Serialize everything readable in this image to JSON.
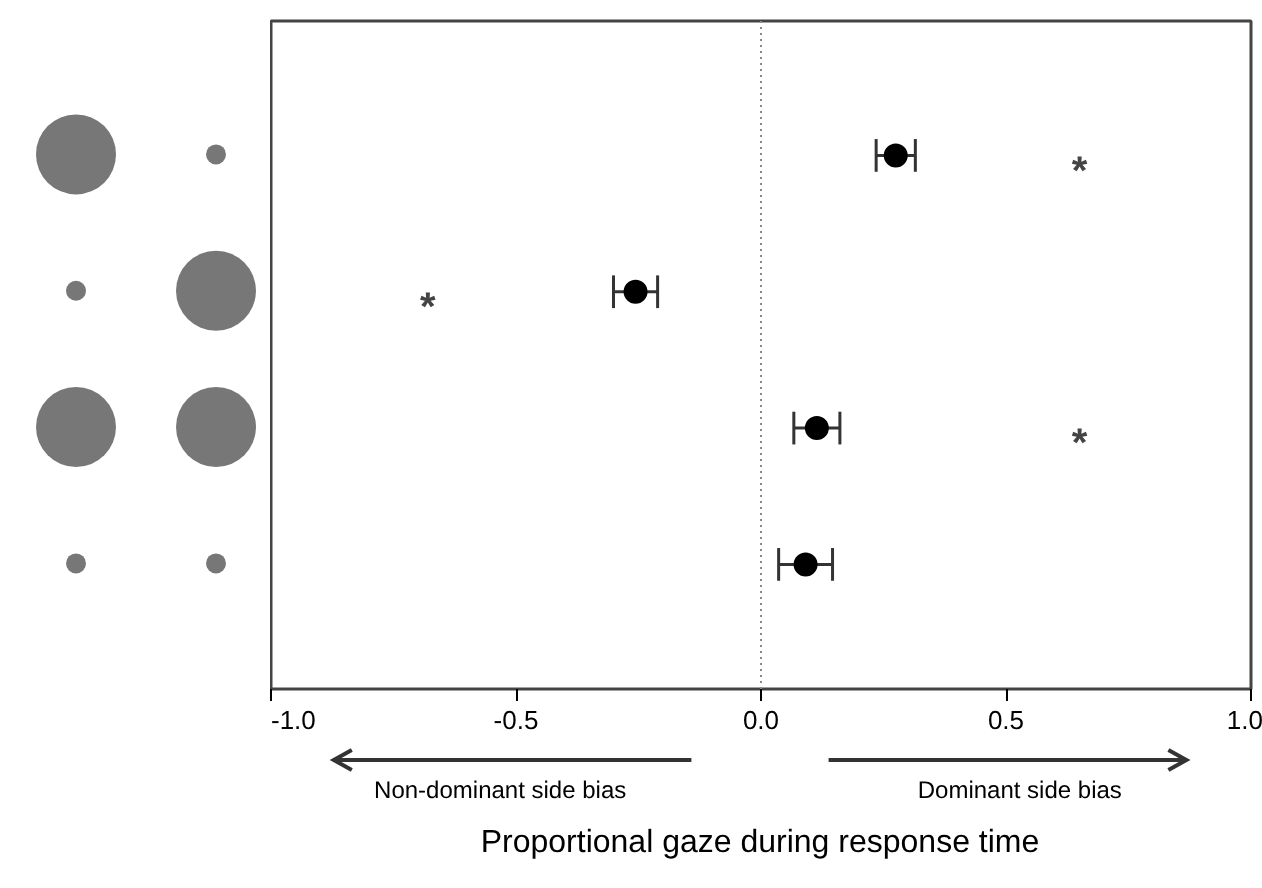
{
  "chart_data": {
    "type": "scatter",
    "orientation": "horizontal",
    "xlabel": "Proportional gaze during response time",
    "categories": [
      null,
      null,
      null,
      null
    ],
    "values": [
      0.275,
      -0.256,
      0.114,
      0.091
    ],
    "errors": [
      0.04,
      0.045,
      0.047,
      0.055
    ],
    "color": "#000000",
    "marker": "circle",
    "xlim": [
      -1.0,
      1.0
    ],
    "xticks": [
      {
        "value": -1.0,
        "label": "-1.0"
      },
      {
        "value": -0.5,
        "label": "-0.5"
      },
      {
        "value": 0.0,
        "label": "0.0"
      },
      {
        "value": 0.5,
        "label": "0.5"
      },
      {
        "value": 1.0,
        "label": "1.0"
      }
    ],
    "tick_labels": "x",
    "grid": false,
    "ref_lines": [
      {
        "axis": "x",
        "value": 0.0,
        "line_style": "dotted",
        "color": "#888888"
      }
    ],
    "annotations": [
      "*",
      "*",
      "*",
      "Non-dominant side bias",
      "Dominant side bias"
    ]
  }
}
